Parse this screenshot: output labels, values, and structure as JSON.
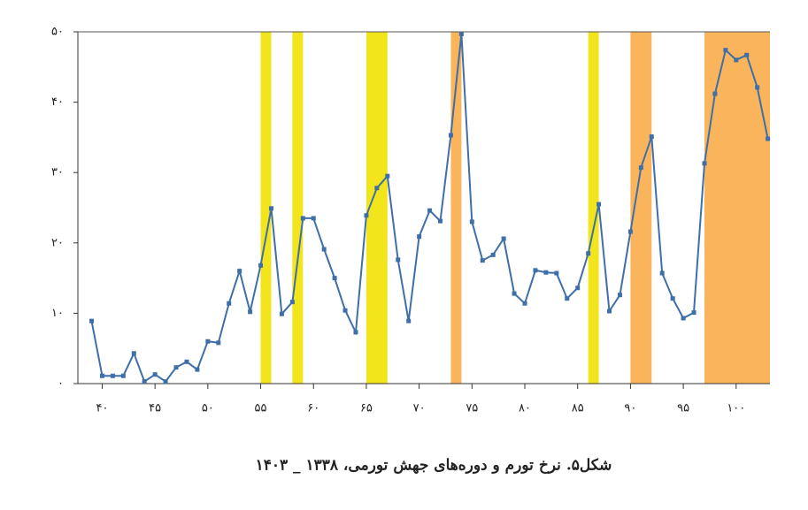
{
  "chart_data": {
    "type": "line",
    "caption": "شکل۵. نرخ تورم و دوره‌های جهش تورمی، ۱۳۳۸ _ ۱۴۰۳",
    "x": [
      39,
      40,
      41,
      42,
      43,
      44,
      45,
      46,
      47,
      48,
      49,
      50,
      51,
      52,
      53,
      54,
      55,
      56,
      57,
      58,
      59,
      60,
      61,
      62,
      63,
      64,
      65,
      66,
      67,
      68,
      69,
      70,
      71,
      72,
      73,
      74,
      75,
      76,
      77,
      78,
      79,
      80,
      81,
      82,
      83,
      84,
      85,
      86,
      87,
      88,
      89,
      90,
      91,
      92,
      93,
      94,
      95,
      96,
      97,
      98,
      99,
      100,
      101,
      102,
      103
    ],
    "values": [
      8.9,
      1.1,
      1.1,
      1.1,
      4.3,
      0.3,
      1.3,
      0.3,
      2.3,
      3.1,
      2.0,
      6.0,
      5.8,
      11.4,
      16.0,
      10.2,
      16.8,
      24.9,
      9.9,
      11.6,
      23.5,
      23.5,
      19.1,
      15.0,
      10.4,
      7.3,
      23.9,
      27.8,
      29.5,
      17.6,
      8.9,
      20.9,
      24.6,
      23.1,
      35.3,
      49.7,
      23.0,
      17.5,
      18.3,
      20.6,
      12.8,
      11.4,
      16.1,
      15.8,
      15.7,
      12.1,
      13.6,
      18.5,
      25.5,
      10.3,
      12.6,
      21.6,
      30.7,
      35.1,
      15.7,
      12.1,
      9.3,
      10.1,
      31.3,
      41.2,
      47.4,
      46.0,
      46.7,
      42.1,
      34.8
    ],
    "color": "#3f6fa8",
    "bands": [
      {
        "start": 55,
        "end": 56,
        "color": "#f2e51c"
      },
      {
        "start": 58,
        "end": 59,
        "color": "#f2e51c"
      },
      {
        "start": 65,
        "end": 67,
        "color": "#f2e51c"
      },
      {
        "start": 86,
        "end": 87,
        "color": "#f2e51c"
      },
      {
        "start": 73,
        "end": 74,
        "color": "#f9b45c"
      },
      {
        "start": 90,
        "end": 92,
        "color": "#f9b45c"
      },
      {
        "start": 97,
        "end": 103.2,
        "color": "#f9b45c"
      }
    ],
    "xlim": [
      37.7,
      103.2
    ],
    "xticks": [
      {
        "value": 40,
        "label": "۴۰"
      },
      {
        "value": 45,
        "label": "۴۵"
      },
      {
        "value": 50,
        "label": "۵۰"
      },
      {
        "value": 55,
        "label": "۵۵"
      },
      {
        "value": 60,
        "label": "۶۰"
      },
      {
        "value": 65,
        "label": "۶۵"
      },
      {
        "value": 70,
        "label": "۷۰"
      },
      {
        "value": 75,
        "label": "۷۵"
      },
      {
        "value": 80,
        "label": "۸۰"
      },
      {
        "value": 85,
        "label": "۸۵"
      },
      {
        "value": 90,
        "label": "۹۰"
      },
      {
        "value": 95,
        "label": "۹۵"
      },
      {
        "value": 100,
        "label": "۱۰۰"
      }
    ],
    "ylim": [
      0,
      50
    ],
    "yticks": [
      {
        "value": 0,
        "label": "۰"
      },
      {
        "value": 10,
        "label": "۱۰"
      },
      {
        "value": 20,
        "label": "۲۰"
      },
      {
        "value": 30,
        "label": "۳۰"
      },
      {
        "value": 40,
        "label": "۴۰"
      },
      {
        "value": 50,
        "label": "۵۰"
      }
    ]
  }
}
